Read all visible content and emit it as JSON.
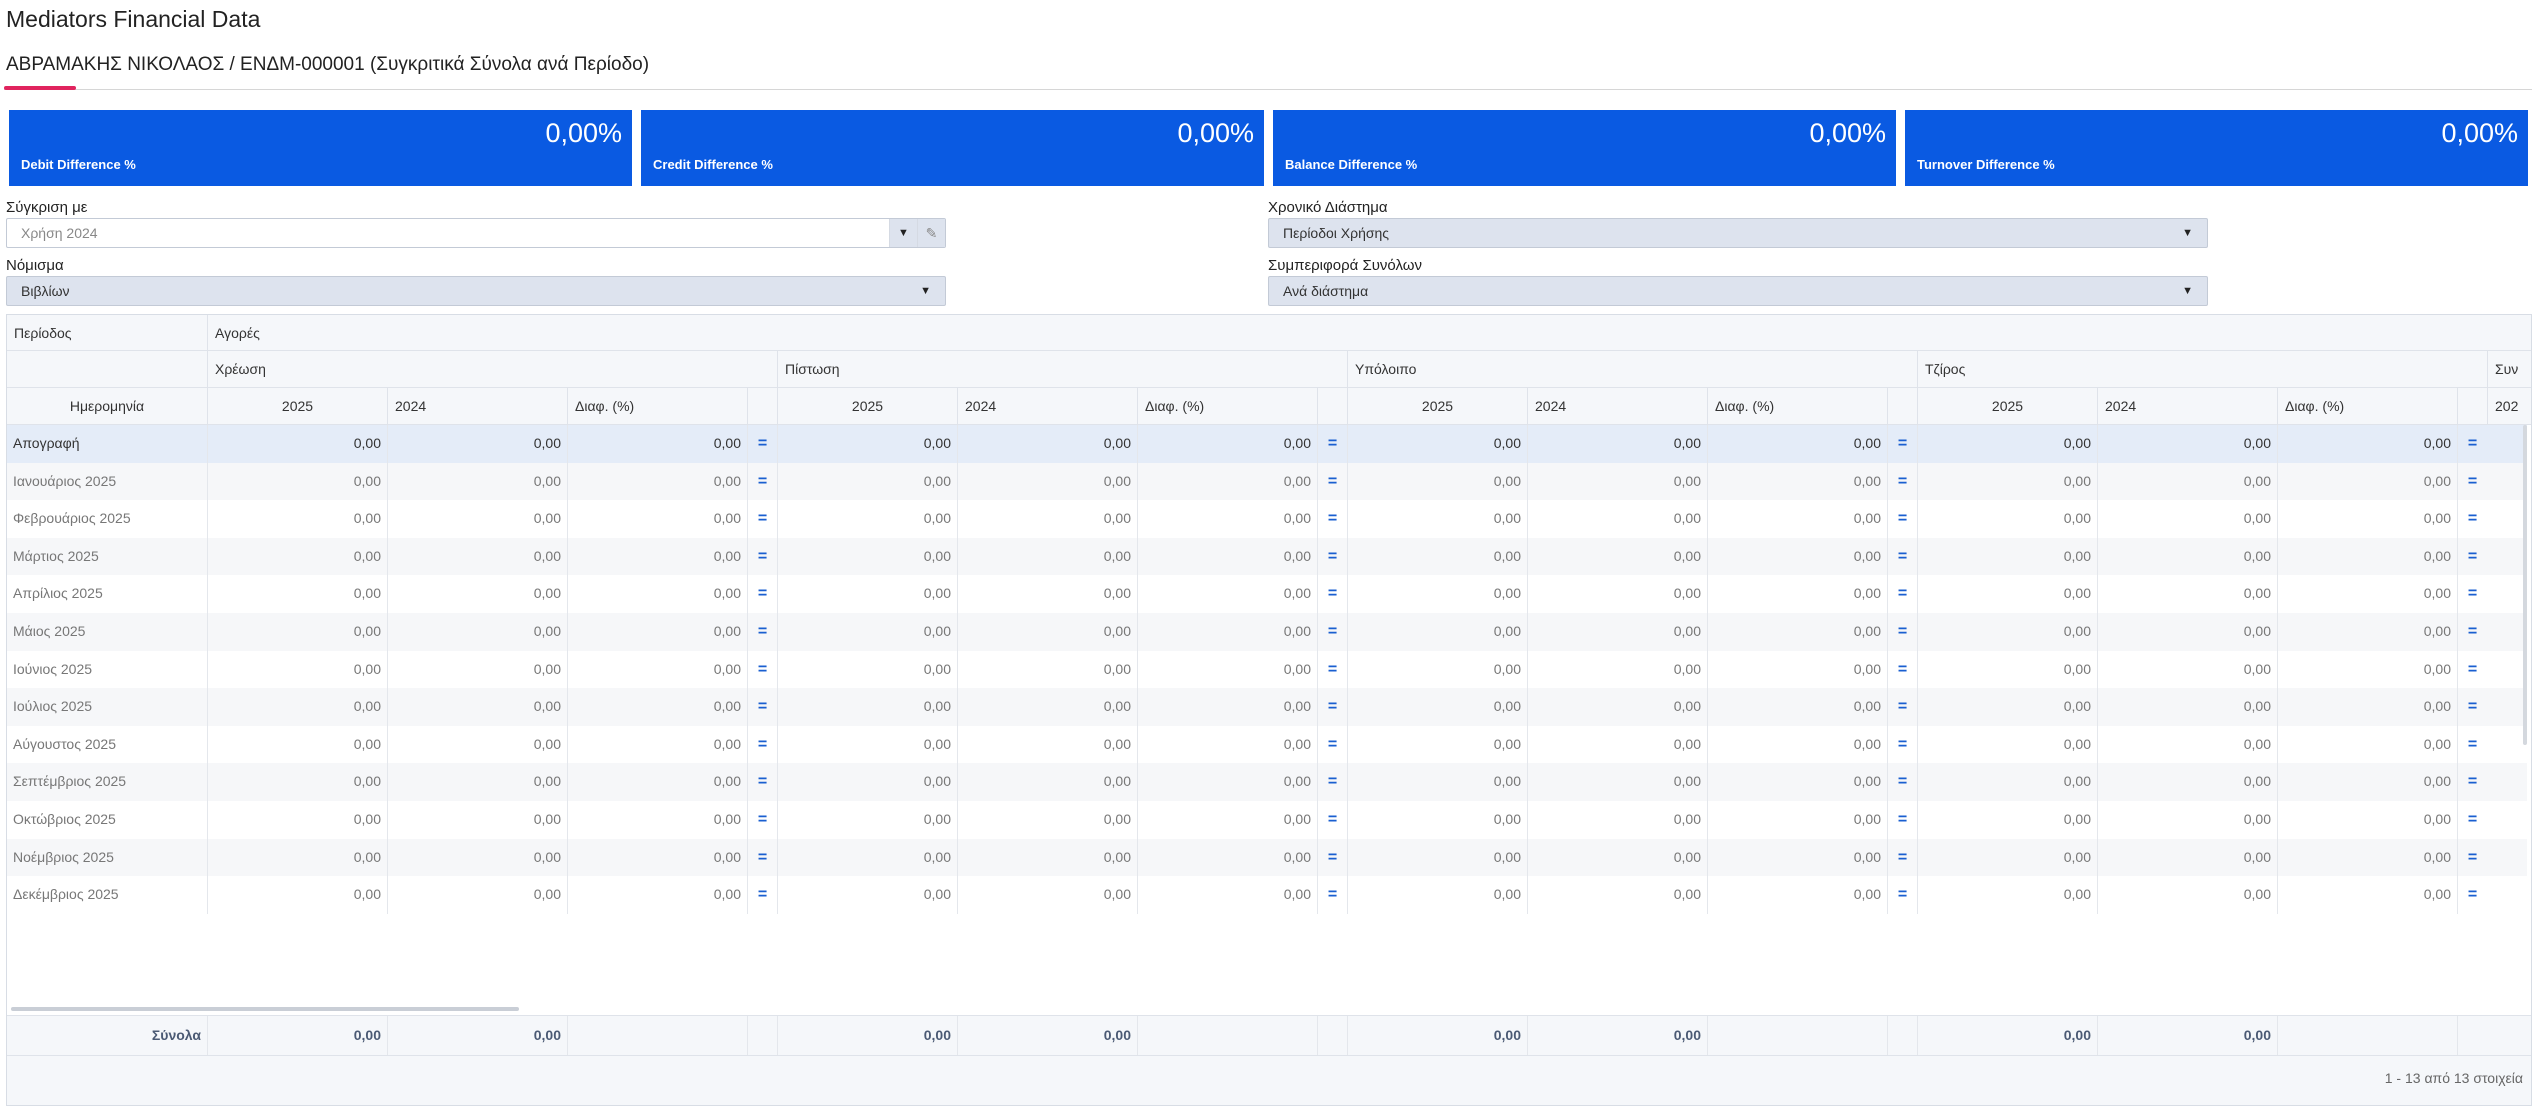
{
  "page": {
    "title": "Mediators Financial Data",
    "record": "ΑΒΡΑΜΑΚΗΣ ΝΙΚΟΛΑΟΣ / ΕΝΔΜ-000001 (Συγκριτικά Σύνολα ανά Περίοδο)"
  },
  "kpis": [
    {
      "value": "0,00%",
      "label": "Debit Difference %"
    },
    {
      "value": "0,00%",
      "label": "Credit Difference %"
    },
    {
      "value": "0,00%",
      "label": "Balance Difference %"
    },
    {
      "value": "0,00%",
      "label": "Turnover Difference %"
    }
  ],
  "filters": {
    "compare_label": "Σύγκριση με",
    "compare_value": "Χρήση 2024",
    "period_label": "Χρονικό Διάστημα",
    "period_value": "Περίοδοι Χρήσης",
    "currency_label": "Νόμισμα",
    "currency_value": "Βιβλίων",
    "totals_label": "Συμπεριφορά Συνόλων",
    "totals_value": "Ανά διάστημα"
  },
  "grid": {
    "period_header": "Περίοδος",
    "group_header": "Αγορές",
    "date_header": "Ημερομηνία",
    "sections": [
      "Χρέωση",
      "Πίστωση",
      "Υπόλοιπο",
      "Τζίρος",
      "Συν"
    ],
    "col_2025": "2025",
    "col_2024": "2024",
    "col_diff": "Διαφ. (%)",
    "col_partial": "202",
    "rows": [
      {
        "label": "Απογραφή",
        "values": [
          "0,00",
          "0,00",
          "0,00",
          "0,00",
          "0,00",
          "0,00",
          "0,00",
          "0,00",
          "0,00",
          "0,00",
          "0,00",
          "0,00"
        ]
      },
      {
        "label": "Ιανουάριος 2025",
        "values": [
          "0,00",
          "0,00",
          "0,00",
          "0,00",
          "0,00",
          "0,00",
          "0,00",
          "0,00",
          "0,00",
          "0,00",
          "0,00",
          "0,00"
        ]
      },
      {
        "label": "Φεβρουάριος 2025",
        "values": [
          "0,00",
          "0,00",
          "0,00",
          "0,00",
          "0,00",
          "0,00",
          "0,00",
          "0,00",
          "0,00",
          "0,00",
          "0,00",
          "0,00"
        ]
      },
      {
        "label": "Μάρτιος 2025",
        "values": [
          "0,00",
          "0,00",
          "0,00",
          "0,00",
          "0,00",
          "0,00",
          "0,00",
          "0,00",
          "0,00",
          "0,00",
          "0,00",
          "0,00"
        ]
      },
      {
        "label": "Απρίλιος 2025",
        "values": [
          "0,00",
          "0,00",
          "0,00",
          "0,00",
          "0,00",
          "0,00",
          "0,00",
          "0,00",
          "0,00",
          "0,00",
          "0,00",
          "0,00"
        ]
      },
      {
        "label": "Μάιος 2025",
        "values": [
          "0,00",
          "0,00",
          "0,00",
          "0,00",
          "0,00",
          "0,00",
          "0,00",
          "0,00",
          "0,00",
          "0,00",
          "0,00",
          "0,00"
        ]
      },
      {
        "label": "Ιούνιος 2025",
        "values": [
          "0,00",
          "0,00",
          "0,00",
          "0,00",
          "0,00",
          "0,00",
          "0,00",
          "0,00",
          "0,00",
          "0,00",
          "0,00",
          "0,00"
        ]
      },
      {
        "label": "Ιούλιος 2025",
        "values": [
          "0,00",
          "0,00",
          "0,00",
          "0,00",
          "0,00",
          "0,00",
          "0,00",
          "0,00",
          "0,00",
          "0,00",
          "0,00",
          "0,00"
        ]
      },
      {
        "label": "Αύγουστος 2025",
        "values": [
          "0,00",
          "0,00",
          "0,00",
          "0,00",
          "0,00",
          "0,00",
          "0,00",
          "0,00",
          "0,00",
          "0,00",
          "0,00",
          "0,00"
        ]
      },
      {
        "label": "Σεπτέμβριος 2025",
        "values": [
          "0,00",
          "0,00",
          "0,00",
          "0,00",
          "0,00",
          "0,00",
          "0,00",
          "0,00",
          "0,00",
          "0,00",
          "0,00",
          "0,00"
        ]
      },
      {
        "label": "Οκτώβριος 2025",
        "values": [
          "0,00",
          "0,00",
          "0,00",
          "0,00",
          "0,00",
          "0,00",
          "0,00",
          "0,00",
          "0,00",
          "0,00",
          "0,00",
          "0,00"
        ]
      },
      {
        "label": "Νοέμβριος 2025",
        "values": [
          "0,00",
          "0,00",
          "0,00",
          "0,00",
          "0,00",
          "0,00",
          "0,00",
          "0,00",
          "0,00",
          "0,00",
          "0,00",
          "0,00"
        ]
      },
      {
        "label": "Δεκέμβριος 2025",
        "values": [
          "0,00",
          "0,00",
          "0,00",
          "0,00",
          "0,00",
          "0,00",
          "0,00",
          "0,00",
          "0,00",
          "0,00",
          "0,00",
          "0,00"
        ]
      }
    ],
    "totals_label": "Σύνολα",
    "totals": [
      "0,00",
      "0,00",
      "",
      "0,00",
      "0,00",
      "",
      "0,00",
      "0,00",
      "",
      "0,00",
      "0,00",
      ""
    ],
    "pager": "1 - 13 από 13 στοιχεία"
  },
  "colors": {
    "accent": "#0a5ae2",
    "underline": "#e0245e"
  }
}
